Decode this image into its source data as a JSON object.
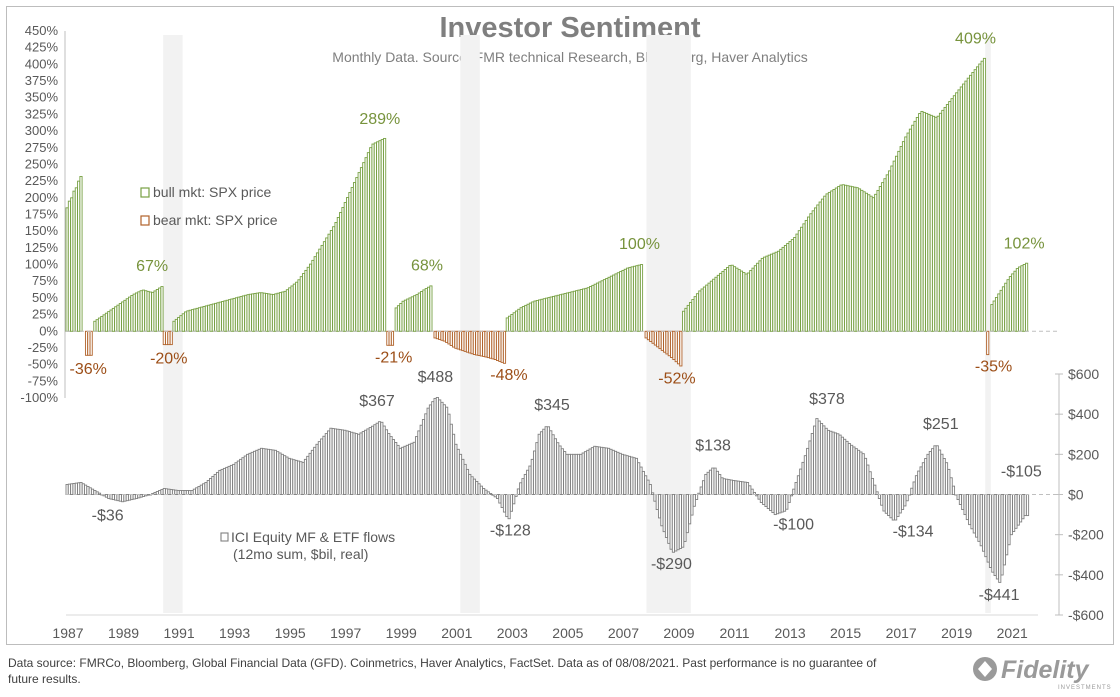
{
  "title": "Investor Sentiment",
  "subtitle": "Monthly Data.  Source:  FMR technical Research, Bloomberg, Haver Analytics",
  "footer": "Data source: FMRCo, Bloomberg, Global Financial Data (GFD). Coinmetrics, Haver Analytics, FactSet. Data as of 08/08/2021. Past performance is no guarantee of future results.",
  "logo": {
    "text": "Fidelity",
    "subtext": "INVESTMENTS"
  },
  "colors": {
    "bull": "#77a043",
    "bear": "#b0622a",
    "flows": "#808080",
    "shade": "#f2f2f2",
    "label_green": "#77933c",
    "label_brown": "#9c4e17",
    "label_gray": "#595959"
  },
  "chart_data": {
    "type": "bar",
    "x_ticks": [
      "1987",
      "1989",
      "1991",
      "1993",
      "1995",
      "1997",
      "1999",
      "2001",
      "2003",
      "2005",
      "2007",
      "2009",
      "2011",
      "2013",
      "2015",
      "2017",
      "2019",
      "2021"
    ],
    "x_range": [
      1987.0,
      2022.0
    ],
    "top_panel": {
      "name": "SPX price change from cycle start",
      "ylim": [
        -100,
        450
      ],
      "y_ticks": [
        "450%",
        "425%",
        "400%",
        "375%",
        "350%",
        "325%",
        "300%",
        "275%",
        "250%",
        "225%",
        "200%",
        "175%",
        "150%",
        "125%",
        "100%",
        "75%",
        "50%",
        "25%",
        "0%",
        "-25%",
        "-50%",
        "-75%",
        "-100%"
      ],
      "legend": [
        {
          "label": "bull mkt: SPX price",
          "color": "#77a043"
        },
        {
          "label": "bear mkt: SPX price",
          "color": "#b0622a"
        }
      ],
      "segments": [
        {
          "kind": "bull",
          "start": 1987.0,
          "end": 1987.62,
          "values": [
            185,
            195,
            200,
            210,
            215,
            225,
            232
          ]
        },
        {
          "kind": "bear",
          "start": 1987.7,
          "end": 1987.95,
          "values": [
            -36
          ]
        },
        {
          "kind": "bull",
          "start": 1988.0,
          "end": 1990.5,
          "values": [
            15,
            25,
            35,
            45,
            55,
            62,
            58,
            67
          ]
        },
        {
          "kind": "bear",
          "start": 1990.5,
          "end": 1990.8,
          "values": [
            -20
          ]
        },
        {
          "kind": "bull",
          "start": 1990.85,
          "end": 1998.5,
          "values": [
            15,
            30,
            35,
            40,
            45,
            50,
            55,
            58,
            55,
            60,
            75,
            100,
            130,
            160,
            200,
            240,
            280,
            289
          ]
        },
        {
          "kind": "bear",
          "start": 1998.55,
          "end": 1998.8,
          "values": [
            -21
          ]
        },
        {
          "kind": "bull",
          "start": 1998.85,
          "end": 2000.2,
          "values": [
            35,
            45,
            50,
            55,
            62,
            68
          ]
        },
        {
          "kind": "bear",
          "start": 2000.25,
          "end": 2002.8,
          "values": [
            -10,
            -15,
            -25,
            -30,
            -35,
            -38,
            -42,
            -48
          ]
        },
        {
          "kind": "bull",
          "start": 2002.85,
          "end": 2007.8,
          "values": [
            20,
            35,
            45,
            50,
            55,
            60,
            65,
            75,
            85,
            95,
            100
          ]
        },
        {
          "kind": "bear",
          "start": 2007.85,
          "end": 2009.15,
          "values": [
            -10,
            -20,
            -30,
            -40,
            -52
          ]
        },
        {
          "kind": "bull",
          "start": 2009.2,
          "end": 2020.1,
          "values": [
            30,
            60,
            80,
            100,
            85,
            110,
            120,
            140,
            175,
            205,
            220,
            215,
            200,
            240,
            290,
            330,
            320,
            350,
            380,
            409
          ]
        },
        {
          "kind": "bear",
          "start": 2020.15,
          "end": 2020.25,
          "values": [
            -35
          ]
        },
        {
          "kind": "bull",
          "start": 2020.3,
          "end": 2021.6,
          "values": [
            40,
            60,
            80,
            95,
            102
          ]
        }
      ],
      "labels": [
        {
          "text": "-36%",
          "x": 1987.8,
          "y": -64,
          "kind": "bear"
        },
        {
          "text": "67%",
          "x": 1990.1,
          "y": 90,
          "kind": "bull"
        },
        {
          "text": "-20%",
          "x": 1990.7,
          "y": -48,
          "kind": "bear"
        },
        {
          "text": "289%",
          "x": 1998.3,
          "y": 311,
          "kind": "bull"
        },
        {
          "text": "-21%",
          "x": 1998.8,
          "y": -47,
          "kind": "bear"
        },
        {
          "text": "68%",
          "x": 2000.0,
          "y": 91,
          "kind": "bull"
        },
        {
          "text": "-48%",
          "x": 2002.95,
          "y": -73,
          "kind": "bear"
        },
        {
          "text": "100%",
          "x": 2007.65,
          "y": 123,
          "kind": "bull"
        },
        {
          "text": "-52%",
          "x": 2009.0,
          "y": -78,
          "kind": "bear"
        },
        {
          "text": "409%",
          "x": 2019.75,
          "y": 431,
          "kind": "bull"
        },
        {
          "text": "-35%",
          "x": 2020.4,
          "y": -60,
          "kind": "bear"
        },
        {
          "text": "102%",
          "x": 2021.5,
          "y": 124,
          "kind": "bull"
        }
      ]
    },
    "bottom_panel": {
      "name": "ICI Equity MF & ETF flows (12mo sum, $bil, real)",
      "legend": [
        "ICI Equity MF & ETF flows",
        "(12mo sum, $bil, real)"
      ],
      "ylim": [
        -600,
        600
      ],
      "y_ticks": [
        "$600",
        "$400",
        "$200",
        "$0",
        "-$200",
        "-$400",
        "-$600"
      ],
      "series": [
        [
          1987.0,
          50
        ],
        [
          1987.5,
          60
        ],
        [
          1988.0,
          20
        ],
        [
          1988.5,
          -20
        ],
        [
          1989.0,
          -36
        ],
        [
          1989.5,
          -20
        ],
        [
          1990.0,
          0
        ],
        [
          1990.5,
          30
        ],
        [
          1991.0,
          20
        ],
        [
          1991.5,
          20
        ],
        [
          1992.0,
          60
        ],
        [
          1992.5,
          120
        ],
        [
          1993.0,
          150
        ],
        [
          1993.5,
          200
        ],
        [
          1994.0,
          230
        ],
        [
          1994.5,
          220
        ],
        [
          1995.0,
          180
        ],
        [
          1995.5,
          160
        ],
        [
          1996.0,
          250
        ],
        [
          1996.5,
          330
        ],
        [
          1997.0,
          320
        ],
        [
          1997.5,
          300
        ],
        [
          1998.0,
          340
        ],
        [
          1998.3,
          367
        ],
        [
          1998.6,
          300
        ],
        [
          1999.0,
          230
        ],
        [
          1999.5,
          260
        ],
        [
          2000.0,
          430
        ],
        [
          2000.3,
          488
        ],
        [
          2000.7,
          430
        ],
        [
          2001.0,
          250
        ],
        [
          2001.5,
          100
        ],
        [
          2002.0,
          30
        ],
        [
          2002.5,
          -20
        ],
        [
          2002.9,
          -128
        ],
        [
          2003.3,
          50
        ],
        [
          2003.7,
          150
        ],
        [
          2004.0,
          300
        ],
        [
          2004.3,
          345
        ],
        [
          2004.7,
          250
        ],
        [
          2005.0,
          200
        ],
        [
          2005.5,
          200
        ],
        [
          2006.0,
          240
        ],
        [
          2006.5,
          230
        ],
        [
          2007.0,
          200
        ],
        [
          2007.5,
          180
        ],
        [
          2008.0,
          50
        ],
        [
          2008.4,
          -150
        ],
        [
          2008.8,
          -290
        ],
        [
          2009.2,
          -260
        ],
        [
          2009.6,
          -50
        ],
        [
          2010.0,
          100
        ],
        [
          2010.3,
          138
        ],
        [
          2010.6,
          80
        ],
        [
          2011.0,
          70
        ],
        [
          2011.5,
          60
        ],
        [
          2012.0,
          -40
        ],
        [
          2012.5,
          -100
        ],
        [
          2012.9,
          -80
        ],
        [
          2013.2,
          40
        ],
        [
          2013.6,
          200
        ],
        [
          2014.0,
          378
        ],
        [
          2014.4,
          320
        ],
        [
          2014.8,
          300
        ],
        [
          2015.2,
          250
        ],
        [
          2015.7,
          200
        ],
        [
          2016.0,
          80
        ],
        [
          2016.4,
          -80
        ],
        [
          2016.8,
          -134
        ],
        [
          2017.2,
          -50
        ],
        [
          2017.6,
          100
        ],
        [
          2018.0,
          200
        ],
        [
          2018.3,
          251
        ],
        [
          2018.7,
          150
        ],
        [
          2019.0,
          0
        ],
        [
          2019.5,
          -150
        ],
        [
          2019.9,
          -250
        ],
        [
          2020.3,
          -380
        ],
        [
          2020.6,
          -441
        ],
        [
          2021.0,
          -200
        ],
        [
          2021.5,
          -105
        ]
      ],
      "labels": [
        {
          "text": "-$36",
          "x": 1988.5,
          "y": -130
        },
        {
          "text": "$367",
          "x": 1998.2,
          "y": 440
        },
        {
          "text": "$488",
          "x": 2000.3,
          "y": 560
        },
        {
          "text": "-$128",
          "x": 2003.0,
          "y": -205
        },
        {
          "text": "$345",
          "x": 2004.5,
          "y": 420
        },
        {
          "text": "-$290",
          "x": 2008.8,
          "y": -370
        },
        {
          "text": "$138",
          "x": 2010.3,
          "y": 220
        },
        {
          "text": "-$100",
          "x": 2013.2,
          "y": -175
        },
        {
          "text": "$378",
          "x": 2014.4,
          "y": 450
        },
        {
          "text": "-$134",
          "x": 2017.5,
          "y": -210
        },
        {
          "text": "$251",
          "x": 2018.5,
          "y": 325
        },
        {
          "text": "-$441",
          "x": 2020.6,
          "y": -525
        },
        {
          "text": "-$105",
          "x": 2021.4,
          "y": 90
        }
      ]
    },
    "recessions": [
      [
        1990.5,
        1991.2
      ],
      [
        2001.2,
        2001.9
      ],
      [
        2007.9,
        2009.5
      ],
      [
        2020.1,
        2020.3
      ]
    ]
  }
}
